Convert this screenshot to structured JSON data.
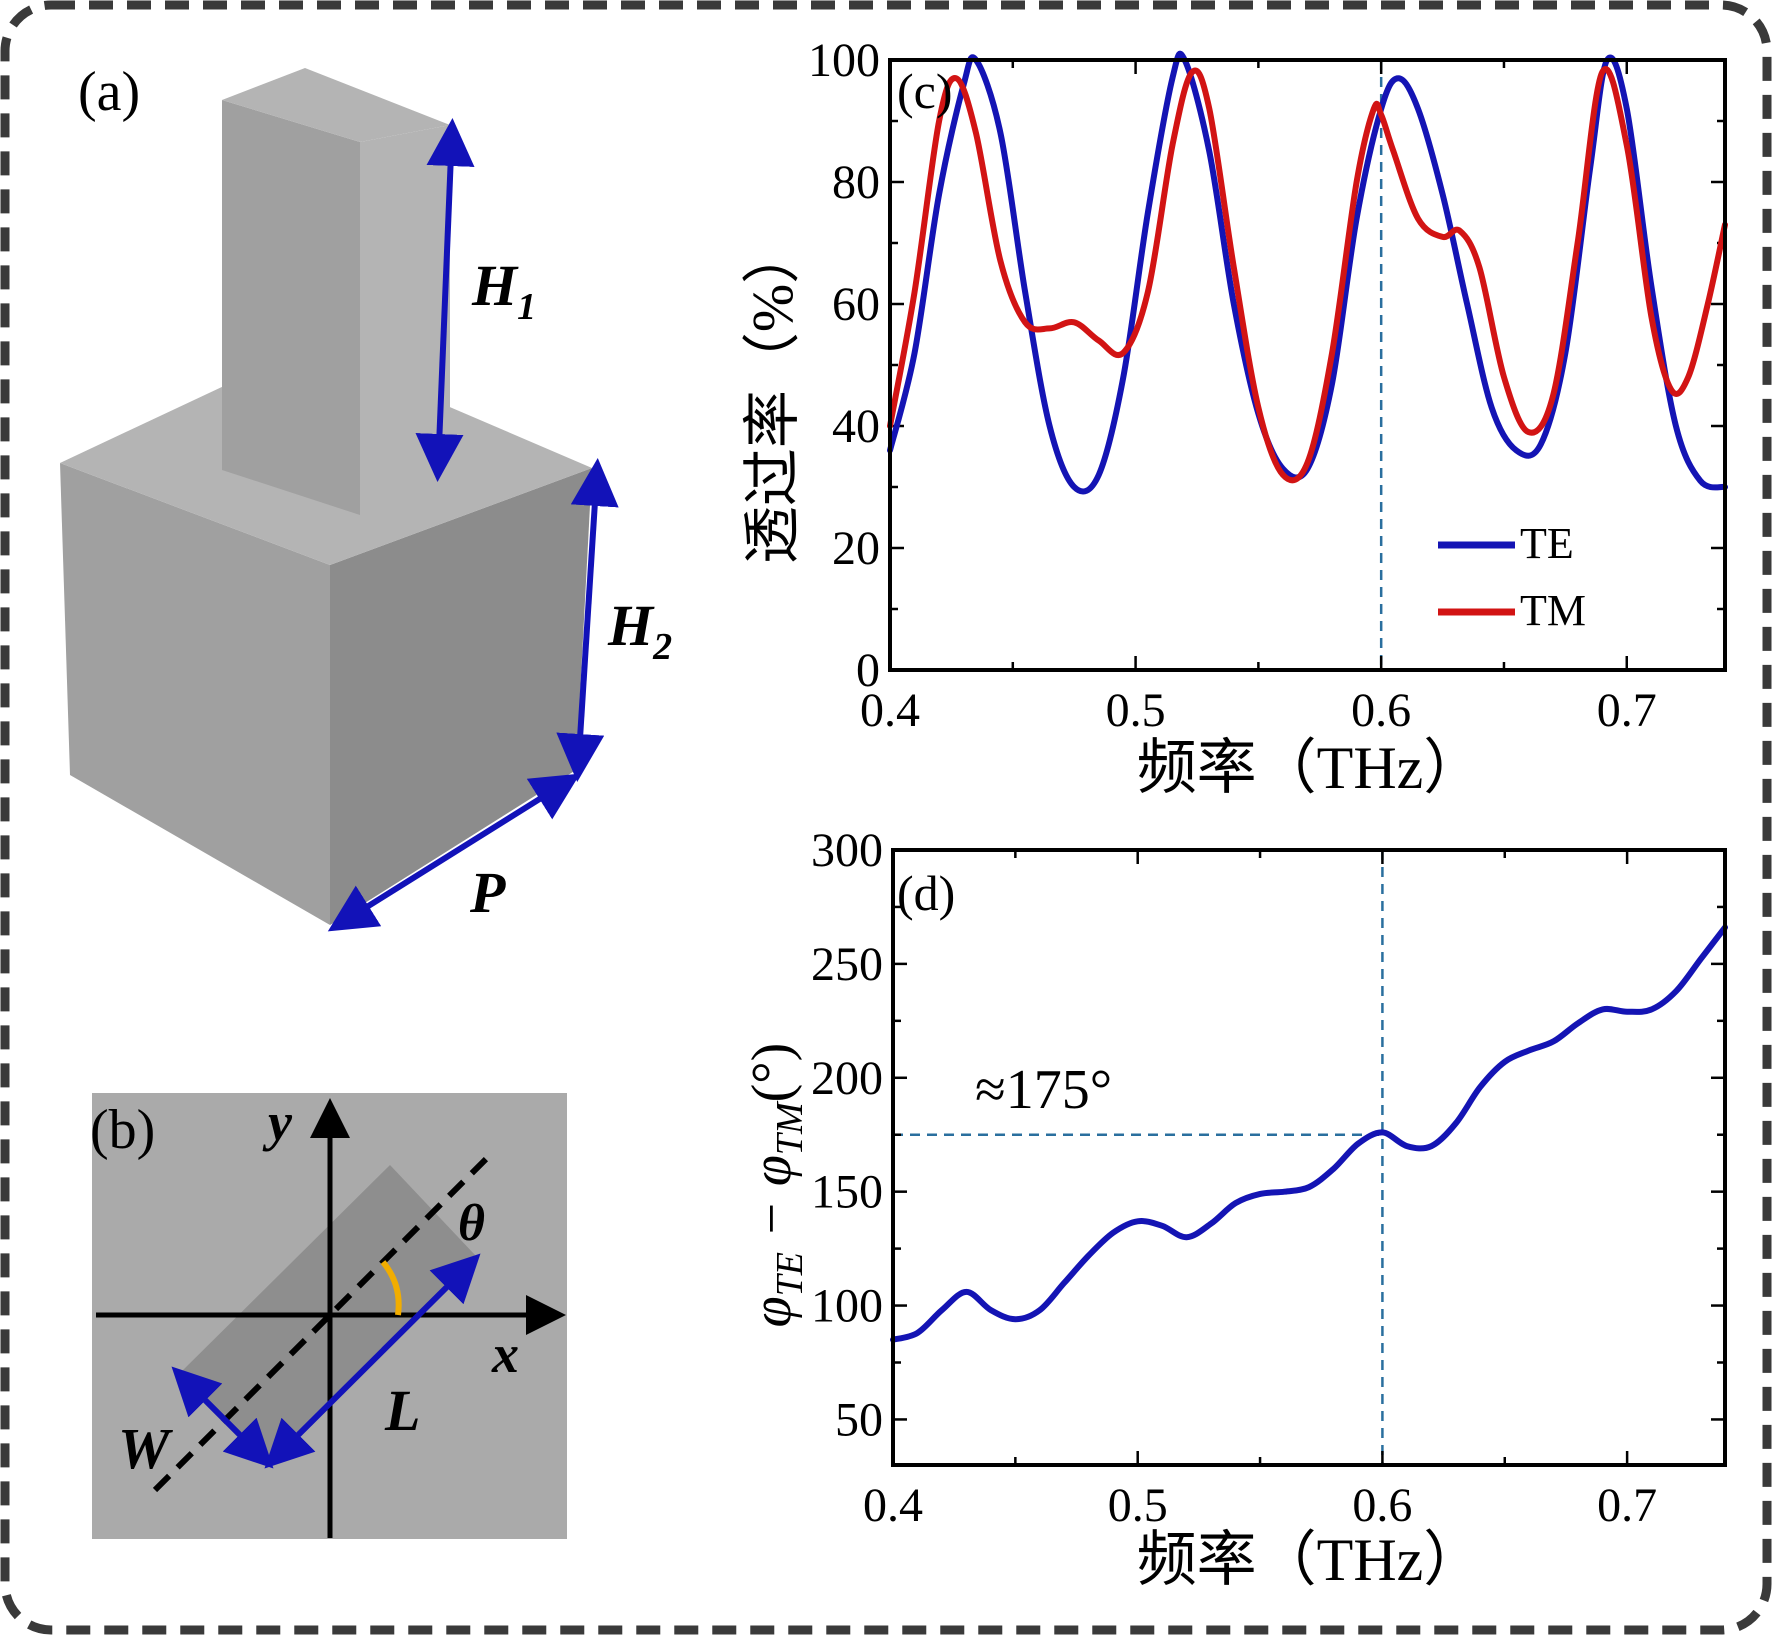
{
  "colors": {
    "te": "#1414b4",
    "tm": "#d21414",
    "arrow": "#1212b8",
    "theta": "#f2ad00",
    "guide": "#2a6f9e",
    "block_light": "#b4b4b4",
    "block_mid": "#a0a0a0",
    "block_dark": "#8c8c8c",
    "panel_b_bg": "#aaaaaa",
    "panel_b_rect": "#8e8e8e"
  },
  "panel_a": {
    "label": "(a)",
    "h1_letter": "H",
    "h1_sub": "1",
    "h2_letter": "H",
    "h2_sub": "2",
    "p_label": "P"
  },
  "panel_b": {
    "label": "(b)",
    "x_axis": "x",
    "y_axis": "y",
    "theta": "θ",
    "w_label": "W",
    "l_label": "L"
  },
  "chart_data": [
    {
      "id": "c",
      "type": "line",
      "panel_label": "(c)",
      "xlabel": "频率（THz）",
      "ylabel": "透过率（%）",
      "xlim": [
        0.4,
        0.74
      ],
      "ylim": [
        0,
        100
      ],
      "xticks": [
        0.4,
        0.5,
        0.6,
        0.7
      ],
      "xtick_labels": [
        "0.4",
        "0.5",
        "0.6",
        "0.7"
      ],
      "yticks": [
        0,
        20,
        40,
        60,
        80,
        100
      ],
      "ytick_labels": [
        "0",
        "20",
        "40",
        "60",
        "80",
        "100"
      ],
      "guide_x": 0.6,
      "legend": {
        "position": "bottom-right",
        "entries": [
          "TE",
          "TM"
        ]
      },
      "series": [
        {
          "name": "TE",
          "color_key": "te",
          "points": [
            [
              0.4,
              36
            ],
            [
              0.41,
              52
            ],
            [
              0.42,
              78
            ],
            [
              0.43,
              96
            ],
            [
              0.435,
              100
            ],
            [
              0.445,
              88
            ],
            [
              0.455,
              62
            ],
            [
              0.465,
              40
            ],
            [
              0.475,
              30
            ],
            [
              0.485,
              32
            ],
            [
              0.495,
              48
            ],
            [
              0.505,
              75
            ],
            [
              0.515,
              97
            ],
            [
              0.52,
              100
            ],
            [
              0.53,
              85
            ],
            [
              0.54,
              60
            ],
            [
              0.55,
              42
            ],
            [
              0.56,
              33
            ],
            [
              0.57,
              33
            ],
            [
              0.58,
              47
            ],
            [
              0.59,
              74
            ],
            [
              0.6,
              92
            ],
            [
              0.607,
              97
            ],
            [
              0.615,
              92
            ],
            [
              0.625,
              78
            ],
            [
              0.635,
              60
            ],
            [
              0.645,
              43
            ],
            [
              0.655,
              36
            ],
            [
              0.665,
              37
            ],
            [
              0.675,
              52
            ],
            [
              0.685,
              82
            ],
            [
              0.692,
              100
            ],
            [
              0.7,
              92
            ],
            [
              0.71,
              63
            ],
            [
              0.72,
              40
            ],
            [
              0.73,
              31
            ],
            [
              0.74,
              30
            ]
          ]
        },
        {
          "name": "TM",
          "color_key": "tm",
          "points": [
            [
              0.4,
              40
            ],
            [
              0.41,
              62
            ],
            [
              0.42,
              90
            ],
            [
              0.427,
              97
            ],
            [
              0.435,
              88
            ],
            [
              0.445,
              67
            ],
            [
              0.455,
              57
            ],
            [
              0.465,
              56
            ],
            [
              0.475,
              57
            ],
            [
              0.485,
              54
            ],
            [
              0.495,
              52
            ],
            [
              0.505,
              62
            ],
            [
              0.515,
              86
            ],
            [
              0.523,
              98
            ],
            [
              0.53,
              92
            ],
            [
              0.54,
              66
            ],
            [
              0.55,
              43
            ],
            [
              0.56,
              32
            ],
            [
              0.57,
              34
            ],
            [
              0.58,
              52
            ],
            [
              0.59,
              80
            ],
            [
              0.597,
              92
            ],
            [
              0.6,
              91
            ],
            [
              0.605,
              85
            ],
            [
              0.615,
              74
            ],
            [
              0.625,
              71
            ],
            [
              0.632,
              72
            ],
            [
              0.64,
              66
            ],
            [
              0.65,
              48
            ],
            [
              0.66,
              39
            ],
            [
              0.67,
              45
            ],
            [
              0.68,
              70
            ],
            [
              0.69,
              98
            ],
            [
              0.7,
              86
            ],
            [
              0.71,
              58
            ],
            [
              0.718,
              46
            ],
            [
              0.725,
              48
            ],
            [
              0.733,
              60
            ],
            [
              0.74,
              73
            ]
          ]
        }
      ]
    },
    {
      "id": "d",
      "type": "line",
      "panel_label": "(d)",
      "xlabel": "频率（THz）",
      "ylabel_parts": [
        "φ",
        "TE",
        " − φ",
        "TM",
        "(°)"
      ],
      "xlim": [
        0.4,
        0.74
      ],
      "ylim": [
        30,
        300
      ],
      "xticks": [
        0.4,
        0.5,
        0.6,
        0.7
      ],
      "xtick_labels": [
        "0.4",
        "0.5",
        "0.6",
        "0.7"
      ],
      "yticks": [
        50,
        100,
        150,
        200,
        250,
        300
      ],
      "ytick_labels": [
        "50",
        "100",
        "150",
        "200",
        "250",
        "300"
      ],
      "guide_x": 0.6,
      "guide_y": 175,
      "annotation": "≈175°",
      "series": [
        {
          "name": "φTE − φTM",
          "color_key": "te",
          "points": [
            [
              0.4,
              85
            ],
            [
              0.41,
              88
            ],
            [
              0.42,
              98
            ],
            [
              0.43,
              106
            ],
            [
              0.44,
              98
            ],
            [
              0.45,
              94
            ],
            [
              0.46,
              98
            ],
            [
              0.47,
              110
            ],
            [
              0.48,
              122
            ],
            [
              0.49,
              132
            ],
            [
              0.5,
              137
            ],
            [
              0.51,
              135
            ],
            [
              0.52,
              130
            ],
            [
              0.53,
              136
            ],
            [
              0.54,
              145
            ],
            [
              0.55,
              149
            ],
            [
              0.56,
              150
            ],
            [
              0.57,
              152
            ],
            [
              0.58,
              160
            ],
            [
              0.59,
              171
            ],
            [
              0.6,
              176
            ],
            [
              0.61,
              170
            ],
            [
              0.62,
              170
            ],
            [
              0.63,
              180
            ],
            [
              0.64,
              196
            ],
            [
              0.65,
              207
            ],
            [
              0.66,
              212
            ],
            [
              0.67,
              216
            ],
            [
              0.68,
              224
            ],
            [
              0.69,
              230
            ],
            [
              0.7,
              229
            ],
            [
              0.71,
              230
            ],
            [
              0.72,
              238
            ],
            [
              0.73,
              252
            ],
            [
              0.74,
              266
            ]
          ]
        }
      ]
    }
  ]
}
